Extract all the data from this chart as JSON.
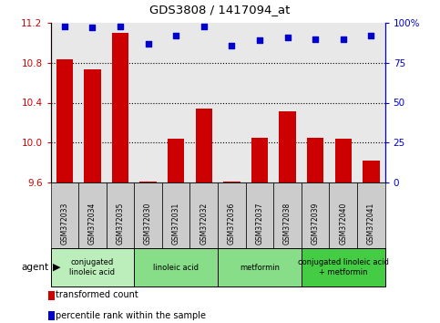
{
  "title": "GDS3808 / 1417094_at",
  "samples": [
    "GSM372033",
    "GSM372034",
    "GSM372035",
    "GSM372030",
    "GSM372031",
    "GSM372032",
    "GSM372036",
    "GSM372037",
    "GSM372038",
    "GSM372039",
    "GSM372040",
    "GSM372041"
  ],
  "bar_values": [
    10.83,
    10.73,
    11.1,
    9.61,
    10.04,
    10.34,
    9.61,
    10.05,
    10.31,
    10.05,
    10.04,
    9.82
  ],
  "dot_values": [
    98,
    97,
    98,
    87,
    92,
    98,
    86,
    89,
    91,
    90,
    90,
    92
  ],
  "ylim_left": [
    9.6,
    11.2
  ],
  "ylim_right": [
    0,
    100
  ],
  "yticks_left": [
    9.6,
    10.0,
    10.4,
    10.8,
    11.2
  ],
  "yticks_right": [
    0,
    25,
    50,
    75,
    100
  ],
  "ytick_labels_right": [
    "0",
    "25",
    "50",
    "75",
    "100%"
  ],
  "bar_color": "#cc0000",
  "dot_color": "#0000cc",
  "bar_bottom": 9.6,
  "hlines": [
    10.0,
    10.4,
    10.8
  ],
  "agent_groups": [
    {
      "label": "conjugated\nlinoleic acid",
      "start": 0,
      "end": 3,
      "color": "#bbeebb"
    },
    {
      "label": "linoleic acid",
      "start": 3,
      "end": 6,
      "color": "#88dd88"
    },
    {
      "label": "metformin",
      "start": 6,
      "end": 9,
      "color": "#88dd88"
    },
    {
      "label": "conjugated linoleic acid\n+ metformin",
      "start": 9,
      "end": 12,
      "color": "#44cc44"
    }
  ],
  "legend_items": [
    {
      "label": "transformed count",
      "color": "#cc0000"
    },
    {
      "label": "percentile rank within the sample",
      "color": "#0000cc"
    }
  ],
  "agent_label": "agent",
  "plot_bg_color": "#e8e8e8",
  "sample_box_color": "#cccccc"
}
